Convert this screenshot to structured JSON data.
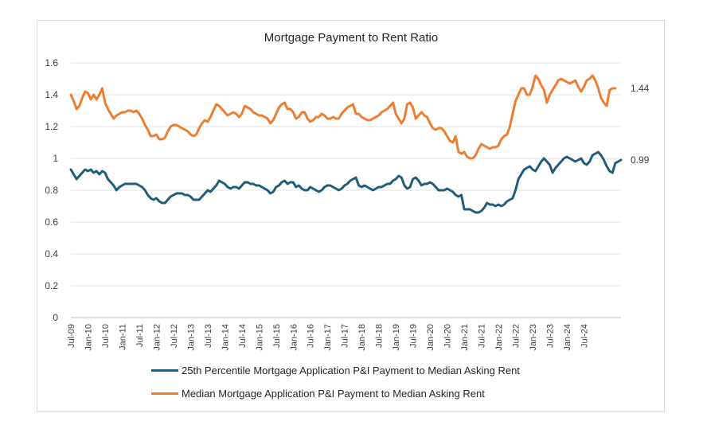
{
  "chart_data": {
    "type": "line",
    "title": "Mortgage Payment to Rent Ratio",
    "xlabel": "",
    "ylabel": "",
    "ylim": [
      0,
      1.6
    ],
    "yticks": [
      "0",
      "0.2",
      "0.4",
      "0.6",
      "0.8",
      "1",
      "1.2",
      "1.4",
      "1.6"
    ],
    "x_tick_labels": [
      "Jul-09",
      "Jan-10",
      "Jul-10",
      "Jan-11",
      "Jul-11",
      "Jan-12",
      "Jul-12",
      "Jan-13",
      "Jul-13",
      "Jan-14",
      "Jul-14",
      "Jan-15",
      "Jul-15",
      "Jan-16",
      "Jul-16",
      "Jan-17",
      "Jul-17",
      "Jan-18",
      "Jul-18",
      "Jan-19",
      "Jul-19",
      "Jan-20",
      "Jul-20",
      "Jan-21",
      "Jul-21",
      "Jan-22",
      "Jul-22",
      "Jan-23",
      "Jul-23",
      "Jan-24",
      "Jul-24"
    ],
    "x_start": "Jul-09",
    "frequency": "monthly",
    "grid": "horizontal",
    "legend_position": "bottom",
    "series": [
      {
        "name": "25th Percentile Mortgage Application P&I Payment to Median Asking Rent",
        "color": "#1f5d7a",
        "end_label": "0.99",
        "values": [
          0.93,
          0.9,
          0.87,
          0.89,
          0.91,
          0.93,
          0.92,
          0.93,
          0.91,
          0.92,
          0.9,
          0.92,
          0.91,
          0.87,
          0.85,
          0.83,
          0.8,
          0.82,
          0.83,
          0.84,
          0.84,
          0.84,
          0.84,
          0.84,
          0.83,
          0.82,
          0.8,
          0.77,
          0.75,
          0.74,
          0.75,
          0.73,
          0.72,
          0.72,
          0.74,
          0.76,
          0.77,
          0.78,
          0.78,
          0.78,
          0.77,
          0.77,
          0.76,
          0.74,
          0.74,
          0.74,
          0.76,
          0.78,
          0.8,
          0.79,
          0.81,
          0.83,
          0.86,
          0.85,
          0.84,
          0.82,
          0.81,
          0.82,
          0.82,
          0.81,
          0.83,
          0.85,
          0.85,
          0.84,
          0.84,
          0.83,
          0.83,
          0.82,
          0.81,
          0.8,
          0.78,
          0.79,
          0.82,
          0.83,
          0.85,
          0.86,
          0.84,
          0.85,
          0.85,
          0.82,
          0.83,
          0.81,
          0.8,
          0.8,
          0.82,
          0.81,
          0.8,
          0.79,
          0.8,
          0.82,
          0.83,
          0.83,
          0.82,
          0.81,
          0.8,
          0.81,
          0.83,
          0.84,
          0.86,
          0.87,
          0.88,
          0.83,
          0.82,
          0.83,
          0.82,
          0.81,
          0.8,
          0.81,
          0.82,
          0.82,
          0.83,
          0.84,
          0.84,
          0.86,
          0.87,
          0.89,
          0.88,
          0.83,
          0.81,
          0.82,
          0.87,
          0.88,
          0.86,
          0.83,
          0.84,
          0.84,
          0.85,
          0.84,
          0.82,
          0.8,
          0.8,
          0.8,
          0.81,
          0.8,
          0.79,
          0.77,
          0.76,
          0.77,
          0.68,
          0.68,
          0.68,
          0.67,
          0.66,
          0.66,
          0.67,
          0.69,
          0.72,
          0.71,
          0.71,
          0.7,
          0.71,
          0.7,
          0.71,
          0.73,
          0.74,
          0.75,
          0.8,
          0.87,
          0.9,
          0.93,
          0.94,
          0.95,
          0.93,
          0.92,
          0.95,
          0.98,
          1.0,
          0.98,
          0.96,
          0.91,
          0.94,
          0.96,
          0.98,
          1.0,
          1.01,
          1.0,
          0.99,
          0.98,
          0.99,
          1.0,
          0.97,
          0.96,
          0.98,
          1.02,
          1.03,
          1.04,
          1.02,
          0.99,
          0.95,
          0.92,
          0.91,
          0.97,
          0.98,
          0.99
        ]
      },
      {
        "name": "Median Mortgage Application P&I Payment to Median Asking Rent",
        "color": "#ed7d31",
        "end_label": "1.44",
        "values": [
          1.4,
          1.36,
          1.31,
          1.33,
          1.38,
          1.42,
          1.41,
          1.37,
          1.4,
          1.37,
          1.4,
          1.44,
          1.35,
          1.31,
          1.28,
          1.25,
          1.27,
          1.28,
          1.29,
          1.29,
          1.3,
          1.3,
          1.29,
          1.3,
          1.28,
          1.25,
          1.21,
          1.18,
          1.14,
          1.14,
          1.15,
          1.12,
          1.12,
          1.13,
          1.17,
          1.2,
          1.21,
          1.21,
          1.2,
          1.19,
          1.18,
          1.17,
          1.15,
          1.14,
          1.15,
          1.19,
          1.22,
          1.24,
          1.23,
          1.26,
          1.3,
          1.34,
          1.33,
          1.31,
          1.29,
          1.27,
          1.28,
          1.29,
          1.28,
          1.26,
          1.28,
          1.33,
          1.32,
          1.31,
          1.29,
          1.28,
          1.27,
          1.27,
          1.26,
          1.25,
          1.22,
          1.24,
          1.28,
          1.32,
          1.34,
          1.35,
          1.31,
          1.31,
          1.29,
          1.25,
          1.26,
          1.29,
          1.29,
          1.25,
          1.23,
          1.24,
          1.26,
          1.26,
          1.28,
          1.27,
          1.25,
          1.25,
          1.26,
          1.25,
          1.25,
          1.28,
          1.3,
          1.32,
          1.33,
          1.34,
          1.28,
          1.28,
          1.26,
          1.25,
          1.24,
          1.24,
          1.25,
          1.26,
          1.27,
          1.29,
          1.3,
          1.31,
          1.33,
          1.35,
          1.28,
          1.25,
          1.22,
          1.25,
          1.34,
          1.35,
          1.32,
          1.25,
          1.27,
          1.29,
          1.27,
          1.26,
          1.22,
          1.19,
          1.18,
          1.19,
          1.19,
          1.17,
          1.14,
          1.11,
          1.1,
          1.14,
          1.04,
          1.03,
          1.04,
          1.01,
          1.0,
          1.0,
          1.02,
          1.06,
          1.09,
          1.08,
          1.07,
          1.06,
          1.07,
          1.07,
          1.08,
          1.12,
          1.14,
          1.15,
          1.2,
          1.28,
          1.36,
          1.4,
          1.44,
          1.44,
          1.4,
          1.4,
          1.45,
          1.52,
          1.5,
          1.46,
          1.43,
          1.35,
          1.4,
          1.43,
          1.46,
          1.49,
          1.5,
          1.49,
          1.48,
          1.47,
          1.48,
          1.49,
          1.45,
          1.42,
          1.45,
          1.49,
          1.5,
          1.52,
          1.49,
          1.44,
          1.38,
          1.35,
          1.33,
          1.43,
          1.44,
          1.44
        ]
      }
    ]
  }
}
